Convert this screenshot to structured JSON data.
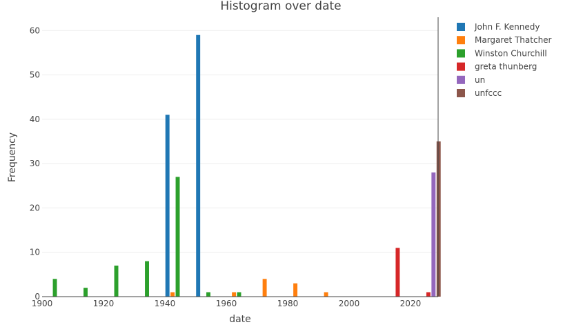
{
  "chart_data": {
    "type": "bar",
    "title": "Histogram over date",
    "xlabel": "date",
    "ylabel": "Frequency",
    "xlim": [
      1900,
      2029
    ],
    "ylim": [
      0,
      63
    ],
    "x_ticks": [
      1900,
      1920,
      1940,
      1960,
      1980,
      2000,
      2020
    ],
    "y_ticks": [
      0,
      10,
      20,
      30,
      40,
      50,
      60
    ],
    "grid": true,
    "legend_position": "top-right",
    "bin_width_years": 10,
    "series": [
      {
        "name": "John F. Kennedy",
        "color": "#1f77b4",
        "points": [
          {
            "x": 1940,
            "y": 41
          },
          {
            "x": 1950,
            "y": 59
          }
        ]
      },
      {
        "name": "Margaret Thatcher",
        "color": "#ff7f0e",
        "points": [
          {
            "x": 1940,
            "y": 1
          },
          {
            "x": 1960,
            "y": 1
          },
          {
            "x": 1970,
            "y": 4
          },
          {
            "x": 1980,
            "y": 3
          },
          {
            "x": 1990,
            "y": 1
          }
        ]
      },
      {
        "name": "Winston Churchill",
        "color": "#2ca02c",
        "points": [
          {
            "x": 1900,
            "y": 4
          },
          {
            "x": 1910,
            "y": 2
          },
          {
            "x": 1920,
            "y": 7
          },
          {
            "x": 1930,
            "y": 8
          },
          {
            "x": 1940,
            "y": 27
          },
          {
            "x": 1950,
            "y": 1
          },
          {
            "x": 1960,
            "y": 1
          }
        ]
      },
      {
        "name": "greta thunberg",
        "color": "#d62728",
        "points": [
          {
            "x": 2010,
            "y": 11
          },
          {
            "x": 2020,
            "y": 1
          }
        ]
      },
      {
        "name": "un",
        "color": "#9467bd",
        "points": [
          {
            "x": 2020,
            "y": 28
          }
        ]
      },
      {
        "name": "unfccc",
        "color": "#8c564b",
        "points": [
          {
            "x": 2020,
            "y": 35
          }
        ]
      }
    ]
  }
}
